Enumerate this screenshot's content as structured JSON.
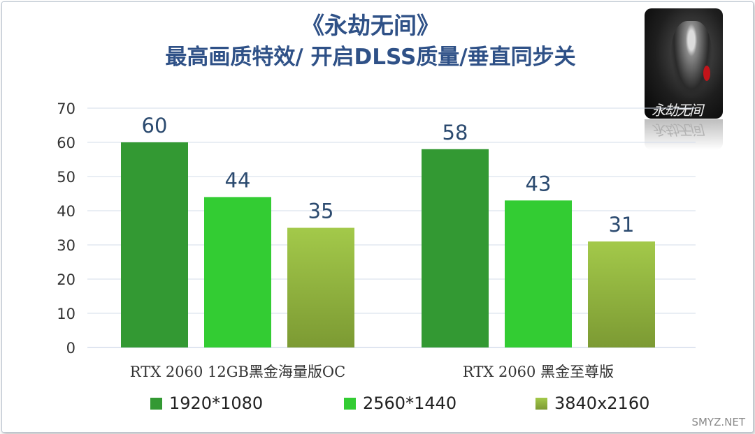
{
  "title": "《永劫无间》",
  "subtitle": "最高画质特效/ 开启DLSS质量/垂直同步关",
  "game_logo_text": "永劫无间",
  "watermark": "SMYZ.NET",
  "chart_data": {
    "type": "bar",
    "categories": [
      "RTX 2060 12GB黑金海量版OC",
      "RTX 2060 黑金至尊版"
    ],
    "series": [
      {
        "name": "1920*1080",
        "values": [
          60,
          58
        ],
        "color": "#339933"
      },
      {
        "name": "2560*1440",
        "values": [
          44,
          43
        ],
        "color": "#33cc33"
      },
      {
        "name": "3840x2160",
        "values": [
          35,
          31
        ],
        "color": "#99c044"
      }
    ],
    "yticks": [
      0,
      10,
      20,
      30,
      40,
      50,
      60,
      70
    ],
    "ylim": [
      0,
      70
    ],
    "grid": true,
    "legend": "bottom",
    "data_labels": true
  }
}
